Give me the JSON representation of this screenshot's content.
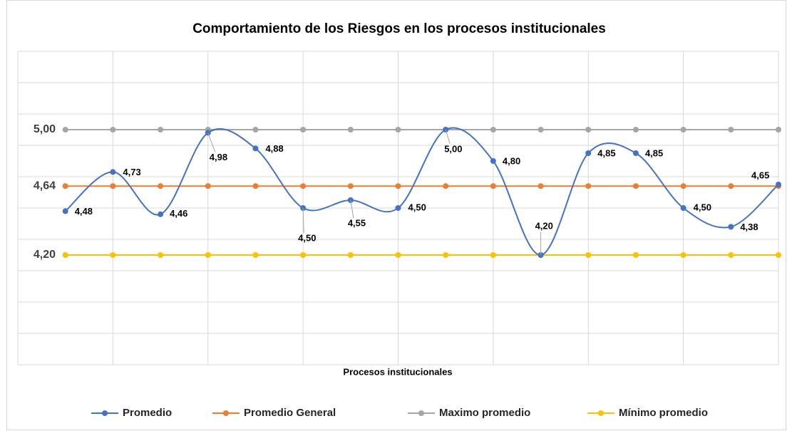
{
  "chart_data": {
    "type": "line",
    "title": "Comportamiento de los Riesgos en los procesos institucionales",
    "xlabel": "Procesos institucionales",
    "categories": [
      null,
      null,
      null,
      null,
      null,
      null,
      null,
      null,
      null,
      null,
      null,
      null,
      null,
      null,
      null,
      null
    ],
    "ylim": [
      3.5,
      5.5
    ],
    "yticks": [
      3.5,
      3.7,
      3.9,
      4.1,
      4.3,
      4.5,
      4.7,
      4.9,
      5.1,
      5.3,
      5.5
    ],
    "grid": true,
    "legend": "bottom",
    "series": [
      {
        "name": "Promedio",
        "color": "#4472c4",
        "smooth": true,
        "values": [
          4.48,
          4.73,
          4.46,
          4.98,
          4.88,
          4.5,
          4.55,
          4.5,
          5.0,
          4.8,
          4.2,
          4.85,
          4.85,
          4.5,
          4.38,
          4.65
        ],
        "value_labels": [
          "4,48",
          "4,73",
          "4,46",
          "4,98",
          "4,88",
          "4,50",
          "4,55",
          "4,50",
          "5,00",
          "4,80",
          "4,20",
          "4,85",
          "4,85",
          "4,50",
          "4,38",
          "4,65"
        ]
      },
      {
        "name": "Promedio General",
        "color": "#ed7d31",
        "values": [
          4.64,
          4.64,
          4.64,
          4.64,
          4.64,
          4.64,
          4.64,
          4.64,
          4.64,
          4.64,
          4.64,
          4.64,
          4.64,
          4.64,
          4.64,
          4.64
        ],
        "value_labels": [
          "4,64",
          null,
          null,
          null,
          null,
          null,
          null,
          null,
          null,
          null,
          null,
          null,
          null,
          null,
          null,
          null
        ]
      },
      {
        "name": "Maximo promedio",
        "color": "#a5a5a5",
        "values": [
          5.0,
          5.0,
          5.0,
          5.0,
          5.0,
          5.0,
          5.0,
          5.0,
          5.0,
          5.0,
          5.0,
          5.0,
          5.0,
          5.0,
          5.0,
          5.0
        ],
        "value_labels": [
          "5,00",
          null,
          null,
          null,
          null,
          null,
          null,
          null,
          null,
          null,
          null,
          null,
          null,
          null,
          null,
          null
        ]
      },
      {
        "name": "Mínimo promedio",
        "color": "#ffc000",
        "values": [
          4.2,
          4.2,
          4.2,
          4.2,
          4.2,
          4.2,
          4.2,
          4.2,
          4.2,
          4.2,
          4.2,
          4.2,
          4.2,
          4.2,
          4.2,
          4.2
        ],
        "value_labels": [
          "4,20",
          null,
          null,
          null,
          null,
          null,
          null,
          null,
          null,
          null,
          null,
          null,
          null,
          null,
          null,
          null
        ]
      }
    ]
  }
}
